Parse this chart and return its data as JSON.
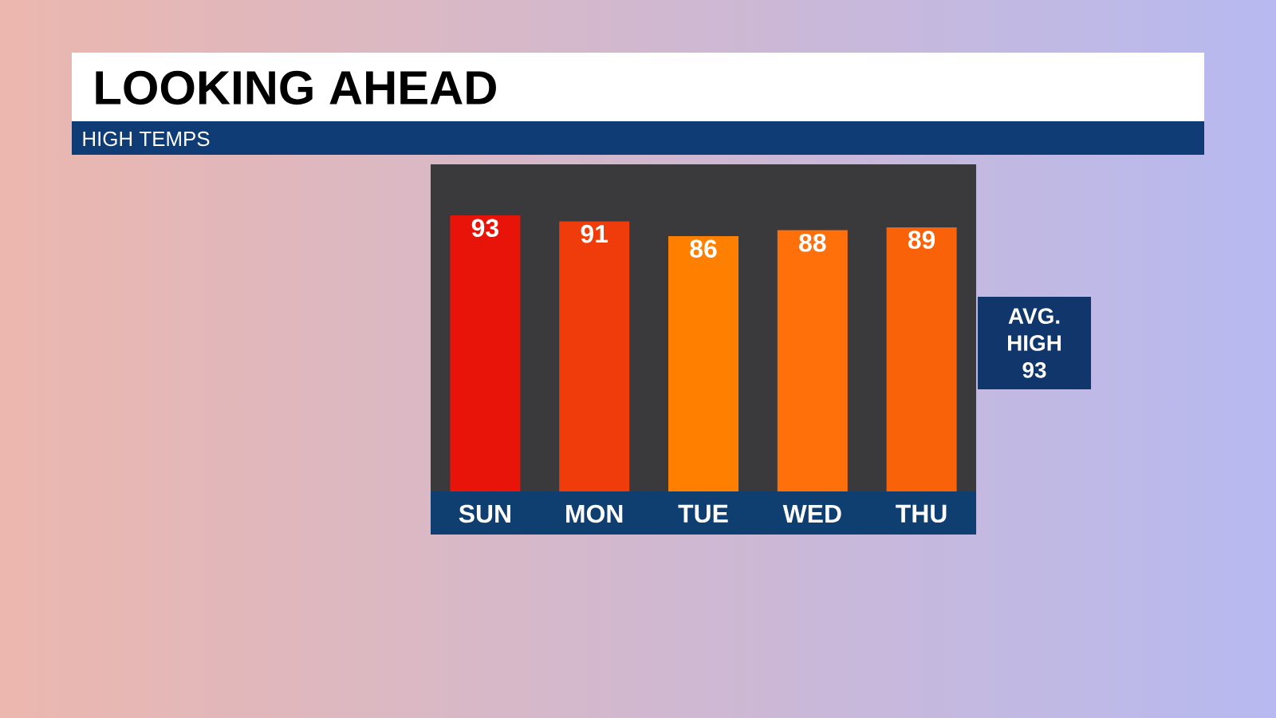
{
  "chart_data": {
    "type": "bar",
    "title": "LOOKING AHEAD",
    "subtitle": "HIGH TEMPS",
    "categories": [
      "SUN",
      "MON",
      "TUE",
      "WED",
      "THU"
    ],
    "values": [
      93,
      91,
      86,
      88,
      89
    ],
    "colors": [
      "#e8140a",
      "#f03c0a",
      "#ff8000",
      "#ff700a",
      "#fa620a"
    ],
    "data_labels": true,
    "annotations": [
      "AVG. HIGH 93"
    ]
  }
}
